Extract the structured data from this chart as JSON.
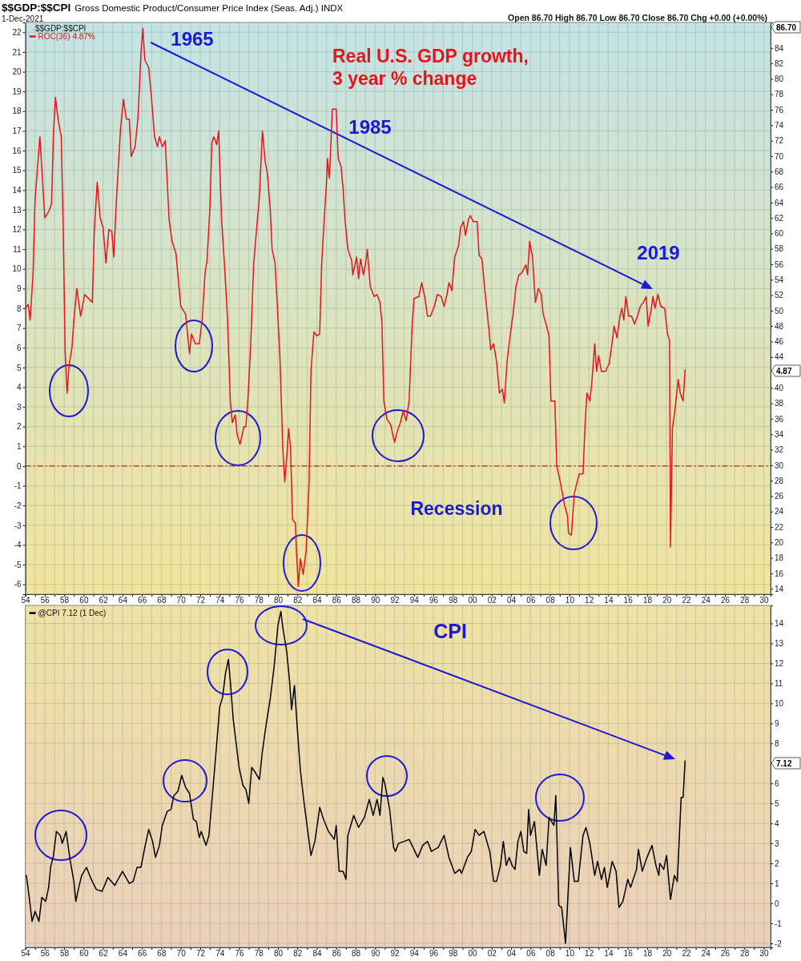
{
  "chart_data": [
    {
      "type": "line",
      "title": "$$GDP:$$CPI",
      "subtitle": "Gross Domestic Product/Consumer Price Index (Seas. Adj.) INDX",
      "annotations": [
        "1-Dec-2021",
        "Open 86.70 High 86.70 Low 86.70 Close 86.70 Chg +0.00 (+0.00%)",
        "$$GDP:$$CPI",
        "86.70",
        "1965",
        "Real U.S. GDP growth, 3 year % change",
        "1985",
        "2019",
        "Recession",
        "4.87"
      ],
      "series": [
        {
          "name": "ROC(36) 4.87%",
          "color": "#e8141c",
          "x": [
            1954.0,
            1954.3,
            1954.5,
            1954.8,
            1955.0,
            1955.3,
            1955.5,
            1955.8,
            1956.0,
            1956.4,
            1956.7,
            1956.9,
            1957.1,
            1957.4,
            1957.7,
            1957.9,
            1958.1,
            1958.3,
            1958.5,
            1958.8,
            1959.0,
            1959.3,
            1959.7,
            1960.1,
            1960.9,
            1961.1,
            1961.4,
            1961.7,
            1962.0,
            1962.3,
            1962.6,
            1962.9,
            1963.1,
            1963.4,
            1963.8,
            1964.1,
            1964.4,
            1964.7,
            1964.9,
            1965.3,
            1965.6,
            1965.9,
            1966.1,
            1966.3,
            1966.7,
            1967.0,
            1967.3,
            1967.6,
            1967.8,
            1968.1,
            1968.4,
            1968.8,
            1969.1,
            1969.5,
            1970.0,
            1970.5,
            1970.9,
            1971.1,
            1971.5,
            1971.9,
            1972.2,
            1972.5,
            1972.7,
            1973.0,
            1973.2,
            1973.4,
            1973.7,
            1973.9,
            1974.2,
            1974.5,
            1974.8,
            1975.1,
            1975.3,
            1975.6,
            1975.8,
            1976.1,
            1976.5,
            1976.7,
            1976.9,
            1977.2,
            1977.5,
            1977.8,
            1978.1,
            1978.4,
            1978.7,
            1978.9,
            1979.2,
            1979.4,
            1979.7,
            1979.9,
            1980.2,
            1980.5,
            1980.7,
            1980.9,
            1981.1,
            1981.3,
            1981.5,
            1981.8,
            1981.9,
            1982.1,
            1982.3,
            1982.6,
            1982.9,
            1983.2,
            1983.4,
            1983.7,
            1984.0,
            1984.3,
            1984.5,
            1984.7,
            1985.0,
            1985.1,
            1985.3,
            1985.6,
            1986.0,
            1986.2,
            1986.5,
            1986.7,
            1986.9,
            1987.2,
            1987.6,
            1987.7,
            1988.1,
            1988.3,
            1988.5,
            1988.8,
            1989.0,
            1989.2,
            1989.5,
            1989.9,
            1990.2,
            1990.5,
            1990.7,
            1990.9,
            1991.2,
            1991.6,
            1992.0,
            1992.3,
            1992.6,
            1992.9,
            1993.2,
            1993.5,
            1993.8,
            1994.0,
            1994.5,
            1994.8,
            1995.1,
            1995.4,
            1995.7,
            1996.1,
            1996.4,
            1996.8,
            1997.1,
            1997.4,
            1997.6,
            1997.9,
            1998.2,
            1998.6,
            1998.8,
            1999.1,
            1999.3,
            1999.6,
            1999.8,
            2000.1,
            2000.5,
            2000.7,
            2001.0,
            2001.3,
            2001.7,
            2001.9,
            2002.2,
            2002.5,
            2002.8,
            2003.1,
            2003.3,
            2003.6,
            2004.0,
            2004.2,
            2004.5,
            2004.8,
            2005.1,
            2005.5,
            2005.7,
            2005.9,
            2006.2,
            2006.5,
            2006.8,
            2007.1,
            2007.3,
            2007.6,
            2007.9,
            2008.1,
            2008.5,
            2008.7,
            2009.1,
            2009.5,
            2009.8,
            2009.9,
            2010.2,
            2010.5,
            2010.7,
            2011.0,
            2011.4,
            2011.6,
            2011.8,
            2012.1,
            2012.3,
            2012.6,
            2012.8,
            2013.0,
            2013.3,
            2013.7,
            2014.1,
            2014.4,
            2014.6,
            2014.9,
            2015.2,
            2015.4,
            2015.6,
            2015.8,
            2016.1,
            2016.4,
            2016.7,
            2017.0,
            2017.3,
            2017.6,
            2017.9,
            2018.1,
            2018.4,
            2018.6,
            2018.8,
            2019.1,
            2019.4,
            2019.8,
            2020.1,
            2020.3,
            2020.4,
            2020.6,
            2020.8,
            2021.2,
            2021.4,
            2021.7,
            2021.9
          ],
          "values": [
            8.0,
            8.2,
            7.4,
            9.8,
            13.5,
            15.4,
            16.7,
            14.3,
            12.6,
            12.9,
            13.3,
            16.9,
            18.7,
            17.5,
            16.7,
            12.1,
            5.8,
            3.7,
            5.1,
            6.0,
            7.4,
            9.0,
            7.6,
            8.7,
            8.3,
            11.9,
            14.4,
            12.6,
            12.1,
            10.3,
            12.0,
            11.9,
            10.6,
            13.7,
            17.1,
            18.6,
            17.6,
            17.6,
            15.7,
            16.2,
            17.7,
            20.9,
            22.2,
            20.6,
            20.2,
            18.6,
            16.7,
            16.2,
            16.7,
            16.2,
            16.5,
            12.5,
            11.4,
            10.8,
            8.1,
            7.7,
            5.7,
            6.7,
            6.2,
            6.2,
            7.4,
            9.8,
            10.4,
            13.1,
            16.4,
            16.7,
            16.3,
            17.0,
            12.5,
            10.2,
            7.6,
            3.3,
            2.2,
            2.6,
            1.6,
            1.1,
            2.0,
            2.0,
            3.3,
            6.2,
            10.2,
            12.0,
            13.7,
            17.0,
            15.4,
            14.9,
            13.1,
            11.0,
            10.3,
            8.5,
            5.6,
            0.9,
            -0.8,
            0.4,
            1.9,
            0.9,
            -2.7,
            -2.9,
            -4.3,
            -6.1,
            -4.7,
            -5.5,
            -4.3,
            -0.9,
            4.8,
            6.8,
            6.6,
            6.7,
            10.2,
            12.0,
            14.4,
            15.6,
            14.6,
            18.1,
            18.1,
            15.6,
            15.2,
            14.1,
            12.5,
            11.0,
            10.4,
            9.7,
            10.6,
            9.5,
            10.5,
            9.7,
            10.2,
            11.0,
            9.1,
            8.6,
            8.7,
            8.3,
            7.3,
            3.3,
            2.4,
            2.1,
            1.2,
            1.8,
            2.2,
            2.8,
            2.3,
            3.3,
            7.0,
            8.5,
            8.6,
            9.3,
            8.6,
            7.6,
            7.6,
            8.1,
            8.7,
            8.6,
            8.1,
            8.7,
            9.3,
            8.9,
            10.6,
            11.2,
            12.1,
            12.4,
            11.7,
            12.5,
            12.7,
            12.4,
            12.4,
            10.7,
            10.5,
            8.9,
            7.0,
            5.9,
            6.2,
            5.3,
            3.7,
            3.9,
            3.2,
            5.4,
            7.0,
            7.7,
            9.1,
            9.7,
            9.8,
            10.2,
            9.7,
            11.4,
            10.6,
            8.3,
            9.0,
            8.7,
            7.7,
            7.2,
            6.6,
            3.3,
            3.3,
            0.0,
            -0.9,
            -2.0,
            -2.5,
            -3.4,
            -3.5,
            -1.4,
            -1.0,
            -0.4,
            -0.4,
            2.0,
            3.7,
            3.3,
            4.2,
            6.2,
            4.8,
            5.6,
            4.8,
            4.8,
            5.2,
            6.3,
            7.1,
            6.5,
            7.6,
            8.0,
            7.4,
            8.6,
            7.6,
            7.6,
            7.2,
            7.6,
            8.1,
            8.3,
            8.6,
            7.1,
            7.9,
            8.6,
            8.0,
            8.7,
            8.1,
            8.0,
            6.7,
            6.4,
            -4.1,
            1.9,
            2.6,
            4.4,
            3.7,
            3.3,
            4.87
          ]
        }
      ],
      "xlim": [
        1954,
        2030.7
      ],
      "xticks": [
        {
          "value": 1954,
          "label": "54"
        },
        {
          "value": 1955,
          "label": null
        },
        {
          "value": 1956,
          "label": "56"
        },
        {
          "value": 1957,
          "label": null
        },
        {
          "value": 1958,
          "label": "58"
        },
        {
          "value": 1959,
          "label": null
        },
        {
          "value": 1960,
          "label": "60"
        },
        {
          "value": 1961,
          "label": null
        },
        {
          "value": 1962,
          "label": "62"
        },
        {
          "value": 1963,
          "label": null
        },
        {
          "value": 1964,
          "label": "64"
        },
        {
          "value": 1965,
          "label": null
        },
        {
          "value": 1966,
          "label": "66"
        },
        {
          "value": 1967,
          "label": null
        },
        {
          "value": 1968,
          "label": "68"
        },
        {
          "value": 1969,
          "label": null
        },
        {
          "value": 1970,
          "label": "70"
        },
        {
          "value": 1971,
          "label": null
        },
        {
          "value": 1972,
          "label": "72"
        },
        {
          "value": 1973,
          "label": null
        },
        {
          "value": 1974,
          "label": "74"
        },
        {
          "value": 1975,
          "label": null
        },
        {
          "value": 1976,
          "label": "76"
        },
        {
          "value": 1977,
          "label": null
        },
        {
          "value": 1978,
          "label": "78"
        },
        {
          "value": 1979,
          "label": null
        },
        {
          "value": 1980,
          "label": "80"
        },
        {
          "value": 1981,
          "label": null
        },
        {
          "value": 1982,
          "label": "82"
        },
        {
          "value": 1983,
          "label": null
        },
        {
          "value": 1984,
          "label": "84"
        },
        {
          "value": 1985,
          "label": null
        },
        {
          "value": 1986,
          "label": "86"
        },
        {
          "value": 1987,
          "label": null
        },
        {
          "value": 1988,
          "label": "88"
        },
        {
          "value": 1989,
          "label": null
        },
        {
          "value": 1990,
          "label": "90"
        },
        {
          "value": 1991,
          "label": null
        },
        {
          "value": 1992,
          "label": "92"
        },
        {
          "value": 1993,
          "label": null
        },
        {
          "value": 1994,
          "label": "94"
        },
        {
          "value": 1995,
          "label": null
        },
        {
          "value": 1996,
          "label": "96"
        },
        {
          "value": 1997,
          "label": null
        },
        {
          "value": 1998,
          "label": "98"
        },
        {
          "value": 1999,
          "label": null
        },
        {
          "value": 2000,
          "label": "00"
        },
        {
          "value": 2001,
          "label": null
        },
        {
          "value": 2002,
          "label": "02"
        },
        {
          "value": 2003,
          "label": null
        },
        {
          "value": 2004,
          "label": "04"
        },
        {
          "value": 2005,
          "label": null
        },
        {
          "value": 2006,
          "label": "06"
        },
        {
          "value": 2007,
          "label": null
        },
        {
          "value": 2008,
          "label": "08"
        },
        {
          "value": 2009,
          "label": null
        },
        {
          "value": 2010,
          "label": "10"
        },
        {
          "value": 2011,
          "label": null
        },
        {
          "value": 2012,
          "label": "12"
        },
        {
          "value": 2013,
          "label": null
        },
        {
          "value": 2014,
          "label": "14"
        },
        {
          "value": 2015,
          "label": null
        },
        {
          "value": 2016,
          "label": "16"
        },
        {
          "value": 2017,
          "label": null
        },
        {
          "value": 2018,
          "label": "18"
        },
        {
          "value": 2019,
          "label": null
        },
        {
          "value": 2020,
          "label": "20"
        },
        {
          "value": 2021,
          "label": null
        },
        {
          "value": 2022,
          "label": "22"
        },
        {
          "value": 2023,
          "label": null
        },
        {
          "value": 2024,
          "label": "24"
        },
        {
          "value": 2025,
          "label": null
        },
        {
          "value": 2026,
          "label": "26"
        },
        {
          "value": 2027,
          "label": null
        },
        {
          "value": 2028,
          "label": "28"
        },
        {
          "value": 2029,
          "label": null
        },
        {
          "value": 2030,
          "label": "30"
        }
      ],
      "ylim": [
        -6.5,
        22.5
      ],
      "yticks": [
        -6,
        -5,
        -4,
        -3,
        -2,
        -1,
        0,
        1,
        2,
        3,
        4,
        5,
        6,
        7,
        8,
        9,
        10,
        11,
        12,
        13,
        14,
        15,
        16,
        17,
        18,
        19,
        20,
        21,
        22
      ],
      "y2lim": [
        13.3,
        87.3
      ],
      "y2ticks": [
        14,
        16,
        18,
        20,
        22,
        24,
        26,
        28,
        30,
        32,
        34,
        36,
        38,
        40,
        44,
        46,
        48,
        50,
        52,
        54,
        56,
        58,
        60,
        62,
        64,
        66,
        68,
        70,
        72,
        74,
        76,
        78,
        80,
        82,
        84
      ],
      "ref_lines": [
        {
          "axis": "y",
          "value": 0,
          "color": "#cc2020",
          "line_style": "dashed"
        }
      ],
      "grid": true,
      "legend": "top left"
    },
    {
      "type": "line",
      "annotations": [
        "CPI",
        "7.12"
      ],
      "series": [
        {
          "name": "@CPI 7.12 (1 Dec)",
          "color": "#000000",
          "x": [
            1954.1,
            1954.3,
            1954.7,
            1955.0,
            1955.4,
            1955.7,
            1956.1,
            1956.4,
            1956.6,
            1956.9,
            1957.2,
            1957.6,
            1957.8,
            1958.2,
            1958.6,
            1959.0,
            1959.2,
            1959.5,
            1959.8,
            1960.3,
            1960.7,
            1961.3,
            1961.9,
            1962.5,
            1963.2,
            1964.0,
            1964.7,
            1965.1,
            1965.5,
            1965.9,
            1966.3,
            1966.7,
            1967.1,
            1967.4,
            1967.8,
            1968.1,
            1968.6,
            1969.0,
            1969.3,
            1969.7,
            1970.1,
            1970.5,
            1970.9,
            1971.3,
            1971.6,
            1971.9,
            1972.1,
            1972.6,
            1972.9,
            1973.2,
            1973.6,
            1974.0,
            1974.3,
            1974.6,
            1974.9,
            1975.1,
            1975.4,
            1975.7,
            1976.0,
            1976.4,
            1976.7,
            1977.0,
            1977.3,
            1977.6,
            1978.1,
            1978.4,
            1978.8,
            1979.2,
            1979.6,
            1980.0,
            1980.3,
            1980.5,
            1980.9,
            1981.2,
            1981.4,
            1981.7,
            1982.0,
            1982.3,
            1982.7,
            1983.1,
            1983.4,
            1983.8,
            1984.3,
            1984.7,
            1985.2,
            1985.8,
            1986.0,
            1986.3,
            1986.7,
            1987.0,
            1987.2,
            1987.8,
            1988.3,
            1988.9,
            1989.4,
            1989.8,
            1990.2,
            1990.5,
            1990.8,
            1991.0,
            1991.5,
            1991.9,
            1992.1,
            1992.4,
            1993.0,
            1993.5,
            1994.0,
            1994.4,
            1994.9,
            1995.4,
            1995.8,
            1996.5,
            1997.1,
            1997.6,
            1998.2,
            1998.7,
            1998.9,
            1999.5,
            1999.9,
            2000.3,
            2000.7,
            2001.2,
            2001.8,
            2002.2,
            2002.5,
            2002.9,
            2003.2,
            2003.5,
            2003.8,
            2004.1,
            2004.4,
            2004.7,
            2005.0,
            2005.3,
            2005.6,
            2005.8,
            2006.0,
            2006.4,
            2006.9,
            2007.2,
            2007.6,
            2007.9,
            2008.4,
            2008.6,
            2008.9,
            2009.2,
            2009.6,
            2010.1,
            2010.5,
            2010.9,
            2011.4,
            2011.7,
            2012.1,
            2012.6,
            2012.9,
            2013.3,
            2013.6,
            2013.9,
            2014.4,
            2014.8,
            2015.1,
            2015.5,
            2016.0,
            2016.3,
            2016.9,
            2017.1,
            2017.5,
            2017.9,
            2018.5,
            2018.9,
            2019.2,
            2019.3,
            2019.7,
            2020.0,
            2020.4,
            2020.8,
            2021.1,
            2021.5,
            2021.7,
            2021.9
          ],
          "values": [
            1.4,
            0.7,
            -0.9,
            -0.4,
            -0.9,
            0.3,
            0.1,
            0.8,
            1.8,
            2.4,
            3.6,
            3.4,
            3.0,
            3.6,
            2.2,
            1.1,
            0.1,
            0.8,
            1.4,
            1.8,
            1.3,
            0.7,
            0.6,
            1.3,
            0.9,
            1.6,
            1.0,
            1.1,
            1.8,
            1.8,
            2.8,
            3.7,
            3.1,
            2.3,
            2.9,
            3.9,
            4.6,
            4.7,
            5.4,
            5.6,
            6.4,
            5.8,
            5.5,
            4.2,
            4.1,
            3.3,
            3.6,
            2.9,
            3.4,
            5.1,
            7.4,
            9.8,
            10.3,
            11.5,
            12.2,
            11.1,
            9.2,
            8.0,
            6.8,
            5.9,
            5.7,
            5.0,
            6.8,
            6.6,
            6.2,
            7.6,
            9.0,
            10.2,
            11.8,
            13.9,
            14.6,
            13.8,
            12.6,
            11.1,
            9.7,
            10.9,
            8.7,
            6.7,
            5.0,
            3.5,
            2.4,
            3.1,
            4.8,
            4.2,
            3.6,
            3.2,
            3.9,
            1.6,
            1.6,
            1.2,
            3.4,
            4.4,
            3.8,
            4.3,
            5.2,
            4.4,
            5.2,
            4.4,
            6.3,
            6.0,
            4.7,
            2.8,
            2.6,
            3.0,
            3.1,
            3.2,
            2.7,
            2.3,
            2.9,
            3.1,
            2.6,
            2.8,
            3.4,
            2.3,
            1.5,
            1.7,
            1.5,
            2.3,
            2.6,
            3.7,
            3.4,
            3.6,
            2.6,
            1.1,
            1.1,
            1.9,
            3.1,
            1.9,
            2.3,
            1.9,
            1.7,
            3.1,
            3.6,
            2.6,
            2.5,
            4.7,
            3.4,
            4.1,
            1.4,
            2.7,
            1.9,
            4.3,
            3.9,
            5.4,
            -0.1,
            -0.2,
            -2.0,
            2.8,
            1.1,
            1.1,
            3.4,
            3.8,
            3.0,
            1.4,
            2.1,
            1.2,
            1.8,
            0.8,
            2.1,
            1.6,
            -0.2,
            0.1,
            1.2,
            0.8,
            1.7,
            2.7,
            1.6,
            2.2,
            2.9,
            1.9,
            1.4,
            2.0,
            1.7,
            2.4,
            0.2,
            1.4,
            1.1,
            5.3,
            5.3,
            7.12
          ]
        }
      ],
      "xlim": [
        1954,
        2030.7
      ],
      "xticks": [
        {
          "value": 1954,
          "label": "54"
        },
        {
          "value": 1955,
          "label": null
        },
        {
          "value": 1956,
          "label": "56"
        },
        {
          "value": 1957,
          "label": null
        },
        {
          "value": 1958,
          "label": "58"
        },
        {
          "value": 1959,
          "label": null
        },
        {
          "value": 1960,
          "label": "60"
        },
        {
          "value": 1961,
          "label": null
        },
        {
          "value": 1962,
          "label": "62"
        },
        {
          "value": 1963,
          "label": null
        },
        {
          "value": 1964,
          "label": "64"
        },
        {
          "value": 1965,
          "label": null
        },
        {
          "value": 1966,
          "label": "66"
        },
        {
          "value": 1967,
          "label": null
        },
        {
          "value": 1968,
          "label": "68"
        },
        {
          "value": 1969,
          "label": null
        },
        {
          "value": 1970,
          "label": "70"
        },
        {
          "value": 1971,
          "label": null
        },
        {
          "value": 1972,
          "label": "72"
        },
        {
          "value": 1973,
          "label": null
        },
        {
          "value": 1974,
          "label": "74"
        },
        {
          "value": 1975,
          "label": null
        },
        {
          "value": 1976,
          "label": "76"
        },
        {
          "value": 1977,
          "label": null
        },
        {
          "value": 1978,
          "label": "78"
        },
        {
          "value": 1979,
          "label": null
        },
        {
          "value": 1980,
          "label": "80"
        },
        {
          "value": 1981,
          "label": null
        },
        {
          "value": 1982,
          "label": "82"
        },
        {
          "value": 1983,
          "label": null
        },
        {
          "value": 1984,
          "label": "84"
        },
        {
          "value": 1985,
          "label": null
        },
        {
          "value": 1986,
          "label": "86"
        },
        {
          "value": 1987,
          "label": null
        },
        {
          "value": 1988,
          "label": "88"
        },
        {
          "value": 1989,
          "label": null
        },
        {
          "value": 1990,
          "label": "90"
        },
        {
          "value": 1991,
          "label": null
        },
        {
          "value": 1992,
          "label": "92"
        },
        {
          "value": 1993,
          "label": null
        },
        {
          "value": 1994,
          "label": "94"
        },
        {
          "value": 1995,
          "label": null
        },
        {
          "value": 1996,
          "label": "96"
        },
        {
          "value": 1997,
          "label": null
        },
        {
          "value": 1998,
          "label": "98"
        },
        {
          "value": 1999,
          "label": null
        },
        {
          "value": 2000,
          "label": "00"
        },
        {
          "value": 2001,
          "label": null
        },
        {
          "value": 2002,
          "label": "02"
        },
        {
          "value": 2003,
          "label": null
        },
        {
          "value": 2004,
          "label": "04"
        },
        {
          "value": 2005,
          "label": null
        },
        {
          "value": 2006,
          "label": "06"
        },
        {
          "value": 2007,
          "label": null
        },
        {
          "value": 2008,
          "label": "08"
        },
        {
          "value": 2009,
          "label": null
        },
        {
          "value": 2010,
          "label": "10"
        },
        {
          "value": 2011,
          "label": null
        },
        {
          "value": 2012,
          "label": "12"
        },
        {
          "value": 2013,
          "label": null
        },
        {
          "value": 2014,
          "label": "14"
        },
        {
          "value": 2015,
          "label": null
        },
        {
          "value": 2016,
          "label": "16"
        },
        {
          "value": 2017,
          "label": null
        },
        {
          "value": 2018,
          "label": "18"
        },
        {
          "value": 2019,
          "label": null
        },
        {
          "value": 2020,
          "label": "20"
        },
        {
          "value": 2021,
          "label": null
        },
        {
          "value": 2022,
          "label": "22"
        },
        {
          "value": 2023,
          "label": null
        },
        {
          "value": 2024,
          "label": "24"
        },
        {
          "value": 2025,
          "label": null
        },
        {
          "value": 2026,
          "label": "26"
        },
        {
          "value": 2027,
          "label": null
        },
        {
          "value": 2028,
          "label": "28"
        },
        {
          "value": 2029,
          "label": null
        },
        {
          "value": 2030,
          "label": "30"
        }
      ],
      "ylim": [
        -2.2,
        14.9
      ],
      "yticks": [
        -2,
        -1,
        0,
        1,
        2,
        3,
        4,
        5,
        6,
        8,
        9,
        10,
        11,
        12,
        13,
        14
      ],
      "grid": true,
      "legend": "top left"
    }
  ]
}
